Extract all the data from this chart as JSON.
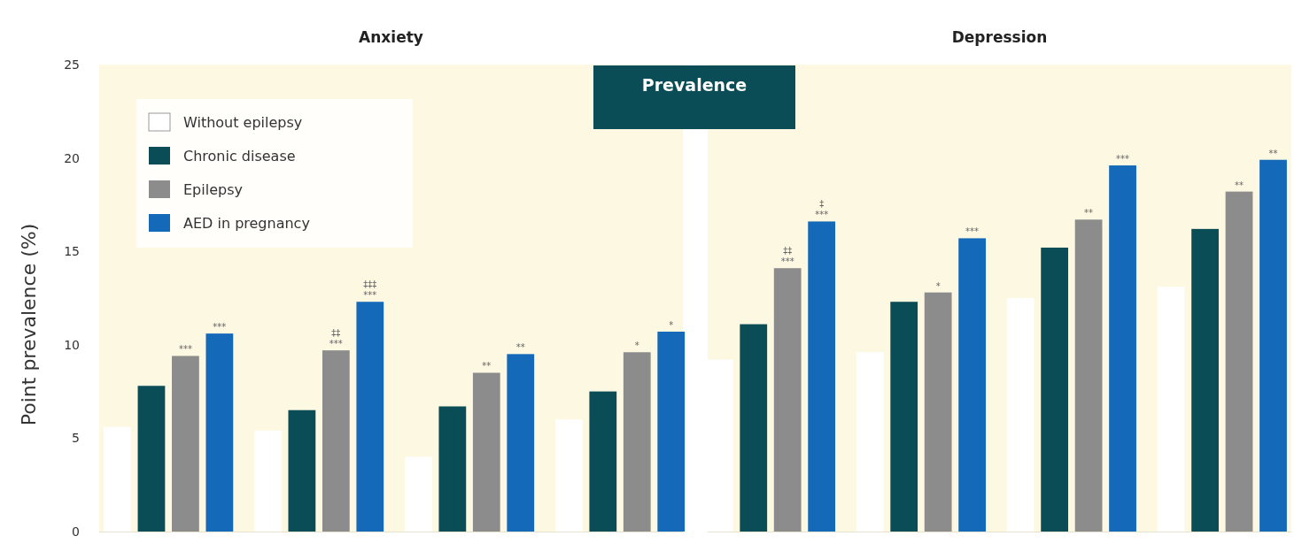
{
  "chart_data": {
    "type": "bar",
    "ylabel": "Point prevalence (%)",
    "categories": [
      null,
      null,
      null,
      null,
      null,
      null,
      null,
      null
    ],
    "ylim": [
      0,
      25
    ],
    "yticks": [
      0,
      5,
      10,
      15,
      20,
      25
    ],
    "tick_labels": "y",
    "legend": "top left",
    "annotations": [
      "Anxiety",
      "Depression",
      "Prevalence"
    ],
    "series": [
      {
        "name": "Without epilepsy",
        "color": "#ffffff",
        "values": [
          5.6,
          5.4,
          4.0,
          6.0,
          9.2,
          9.6,
          12.5,
          13.1
        ]
      },
      {
        "name": "Chronic disease",
        "color": "#0b4d57",
        "values": [
          7.8,
          6.5,
          6.7,
          7.5,
          11.1,
          12.3,
          15.2,
          16.2
        ]
      },
      {
        "name": "Epilepsy",
        "color": "#8c8c8c",
        "values": [
          9.4,
          9.7,
          8.5,
          9.6,
          14.1,
          12.8,
          16.7,
          18.2
        ],
        "value_labels": [
          "***",
          "‡‡\n***",
          "**",
          "*",
          "‡‡\n***",
          "*",
          "**",
          "**"
        ]
      },
      {
        "name": "AED in pregnancy",
        "color": "#1469b8",
        "values": [
          10.6,
          12.3,
          9.5,
          10.7,
          16.6,
          15.7,
          19.6,
          19.9
        ],
        "value_labels": [
          "***",
          "‡‡‡\n***",
          "**",
          "*",
          "‡\n***",
          "***",
          "***",
          "**"
        ]
      }
    ]
  }
}
